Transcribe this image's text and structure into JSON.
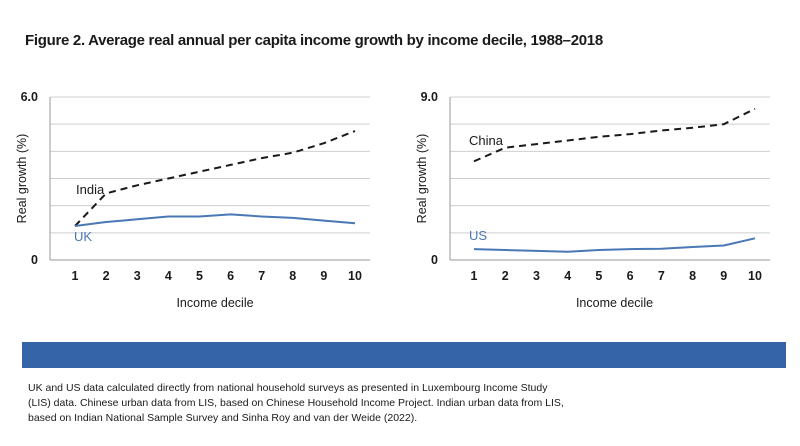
{
  "figure": {
    "title": "Figure 2. Average real annual per capita income growth by income decile, 1988–2018"
  },
  "chart_data": [
    {
      "type": "line",
      "ylabel": "Real growth (%)",
      "xlabel": "Income decile",
      "x": [
        1,
        2,
        3,
        4,
        5,
        6,
        7,
        8,
        9,
        10
      ],
      "ylim": [
        0,
        6.0
      ],
      "yticks": [
        "6.0",
        "0"
      ],
      "grid": true,
      "series": [
        {
          "name": "India",
          "style": "dashed",
          "color": "#1a1a1a",
          "values": [
            1.25,
            2.45,
            2.75,
            3.0,
            3.25,
            3.5,
            3.75,
            3.95,
            4.3,
            4.75
          ]
        },
        {
          "name": "UK",
          "style": "solid",
          "color": "#4a78b5",
          "values": [
            1.25,
            1.4,
            1.5,
            1.6,
            1.6,
            1.68,
            1.6,
            1.55,
            1.45,
            1.35
          ]
        }
      ]
    },
    {
      "type": "line",
      "ylabel": "Real growth (%)",
      "xlabel": "Income decile",
      "x": [
        1,
        2,
        3,
        4,
        5,
        6,
        7,
        8,
        9,
        10
      ],
      "ylim": [
        0,
        9.0
      ],
      "yticks": [
        "9.0",
        "0"
      ],
      "grid": true,
      "series": [
        {
          "name": "China",
          "style": "dashed",
          "color": "#1a1a1a",
          "values": [
            5.45,
            6.2,
            6.4,
            6.6,
            6.8,
            6.95,
            7.15,
            7.3,
            7.5,
            8.35
          ]
        },
        {
          "name": "US",
          "style": "solid",
          "color": "#4a78b5",
          "values": [
            0.6,
            0.55,
            0.5,
            0.45,
            0.55,
            0.6,
            0.62,
            0.72,
            0.8,
            1.2
          ]
        }
      ]
    }
  ],
  "note": {
    "line1": "UK and US data calculated directly from national household surveys as presented in Luxembourg Income Study",
    "line2": "(LIS) data. Chinese urban data from LIS, based on Chinese Household Income Project. Indian urban data from LIS,",
    "line3": "based on Indian National Sample Survey and Sinha Roy and van der Weide (2022)."
  },
  "colors": {
    "banner": "#3565a8",
    "series_blue": "#4a78b5",
    "series_black": "#1a1a1a",
    "grid": "#cfcfcf"
  }
}
